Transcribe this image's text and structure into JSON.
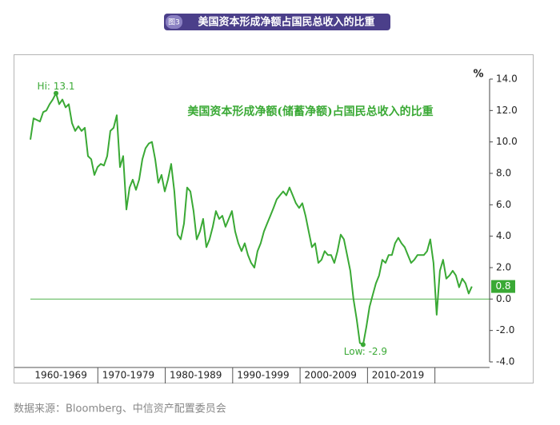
{
  "chart_data": {
    "type": "line",
    "figure_label": "图3",
    "header_title": "美国资本形成净额占国民总收入的比重",
    "title": "美国资本形成净额(储蓄净额)占国民总收入的比重",
    "y_unit": "%",
    "source": "数据来源：Bloomberg、中信资产配置委员会",
    "x_bands": [
      {
        "start": 1960,
        "end": 1970,
        "label": "1960-1969"
      },
      {
        "start": 1970,
        "end": 1980,
        "label": "1970-1979"
      },
      {
        "start": 1980,
        "end": 1990,
        "label": "1980-1989"
      },
      {
        "start": 1990,
        "end": 2000,
        "label": "1990-1999"
      },
      {
        "start": 2000,
        "end": 2010,
        "label": "2000-2009"
      },
      {
        "start": 2010,
        "end": 2020,
        "label": "2010-2019"
      }
    ],
    "xlim": [
      1960,
      2025.5
    ],
    "ylim": [
      -4,
      14
    ],
    "yticks": [
      {
        "value": -4,
        "label": "-4.0"
      },
      {
        "value": -2,
        "label": "-2.0"
      },
      {
        "value": 0,
        "label": "0.0"
      },
      {
        "value": 2,
        "label": "2.0"
      },
      {
        "value": 4,
        "label": "4.0"
      },
      {
        "value": 6,
        "label": "6.0"
      },
      {
        "value": 8,
        "label": "8.0"
      },
      {
        "value": 10,
        "label": "10.0"
      },
      {
        "value": 12,
        "label": "12.0"
      },
      {
        "value": 14,
        "label": "14.0"
      }
    ],
    "zero_line": 0,
    "annotations": [
      {
        "text": "Hi: 13.1",
        "x": 1963.8,
        "y": 13.1
      },
      {
        "text": "Low: -2.9",
        "x": 2009.35,
        "y": -2.9
      }
    ],
    "last_value_label": "0.8",
    "series": [
      {
        "name": "美国资本形成净额占国民总收入的比重",
        "color": "#3aa935",
        "x": [
          1960.0,
          1960.47,
          1960.95,
          1961.42,
          1961.9,
          1962.37,
          1962.85,
          1963.32,
          1963.8,
          1964.27,
          1964.75,
          1965.22,
          1965.69,
          1966.17,
          1966.64,
          1967.12,
          1967.59,
          1968.07,
          1968.54,
          1969.02,
          1969.49,
          1969.96,
          1970.44,
          1970.91,
          1971.39,
          1971.86,
          1972.34,
          1972.81,
          1973.29,
          1973.76,
          1974.24,
          1974.71,
          1975.18,
          1975.66,
          1976.13,
          1976.61,
          1977.08,
          1977.56,
          1978.03,
          1978.51,
          1978.98,
          1979.45,
          1979.93,
          1980.4,
          1980.88,
          1981.35,
          1981.83,
          1982.3,
          1982.78,
          1983.25,
          1983.73,
          1984.2,
          1984.67,
          1985.15,
          1985.62,
          1986.1,
          1986.57,
          1987.05,
          1987.52,
          1988.0,
          1988.47,
          1988.94,
          1989.42,
          1989.89,
          1990.37,
          1990.84,
          1991.32,
          1991.79,
          1992.27,
          1992.74,
          1993.22,
          1993.69,
          1994.16,
          1994.64,
          1995.11,
          1995.59,
          1996.06,
          1996.54,
          1997.01,
          1997.49,
          1997.96,
          1998.43,
          1998.91,
          1999.38,
          1999.86,
          2000.33,
          2000.81,
          2001.28,
          2001.76,
          2002.23,
          2002.71,
          2003.18,
          2003.65,
          2004.13,
          2004.6,
          2005.08,
          2005.55,
          2006.03,
          2006.5,
          2006.98,
          2007.45,
          2007.92,
          2008.4,
          2008.87,
          2009.35,
          2009.82,
          2010.3,
          2010.77,
          2011.25,
          2011.72,
          2012.2,
          2012.67,
          2013.14,
          2013.62,
          2014.09,
          2014.57,
          2015.04,
          2015.52,
          2015.99,
          2016.47,
          2016.94,
          2017.41,
          2017.89,
          2018.36,
          2018.84,
          2019.31,
          2019.79,
          2020.26,
          2020.74,
          2021.21,
          2021.69,
          2022.16,
          2022.64,
          2023.11,
          2023.59,
          2024.06,
          2024.54,
          2025.01,
          2025.48
        ],
        "values": [
          10.15,
          11.5,
          11.4,
          11.3,
          11.9,
          12.0,
          12.4,
          12.7,
          13.1,
          12.4,
          12.7,
          12.2,
          12.4,
          11.2,
          10.7,
          11.0,
          10.7,
          10.9,
          9.1,
          8.9,
          7.9,
          8.4,
          8.6,
          8.5,
          9.1,
          10.7,
          10.9,
          11.7,
          8.4,
          9.1,
          5.7,
          7.1,
          7.6,
          6.95,
          7.6,
          8.9,
          9.6,
          9.9,
          10.0,
          8.9,
          7.4,
          7.9,
          6.85,
          7.6,
          8.6,
          6.85,
          4.1,
          3.8,
          4.8,
          7.1,
          6.85,
          5.6,
          3.8,
          4.3,
          5.1,
          3.3,
          3.8,
          4.6,
          5.6,
          5.1,
          5.3,
          4.6,
          5.1,
          5.6,
          4.3,
          3.55,
          3.05,
          3.55,
          2.8,
          2.3,
          2.0,
          3.05,
          3.55,
          4.3,
          4.8,
          5.3,
          5.8,
          6.35,
          6.6,
          6.85,
          6.6,
          7.1,
          6.6,
          6.1,
          5.8,
          6.1,
          5.3,
          4.3,
          3.3,
          3.55,
          2.3,
          2.5,
          3.05,
          2.8,
          2.8,
          2.3,
          3.05,
          4.1,
          3.8,
          2.8,
          1.8,
          0,
          -1.3,
          -2.8,
          -2.9,
          -1.8,
          -0.5,
          0.25,
          1.0,
          1.5,
          2.5,
          2.3,
          2.8,
          2.8,
          3.55,
          3.9,
          3.55,
          3.3,
          2.8,
          2.3,
          2.5,
          2.8,
          2.8,
          2.8,
          3.05,
          3.8,
          2.3,
          -1.0,
          1.8,
          2.5,
          1.3,
          1.5,
          1.8,
          1.5,
          0.75,
          1.3,
          1.0,
          0.35,
          0.8
        ]
      }
    ]
  }
}
